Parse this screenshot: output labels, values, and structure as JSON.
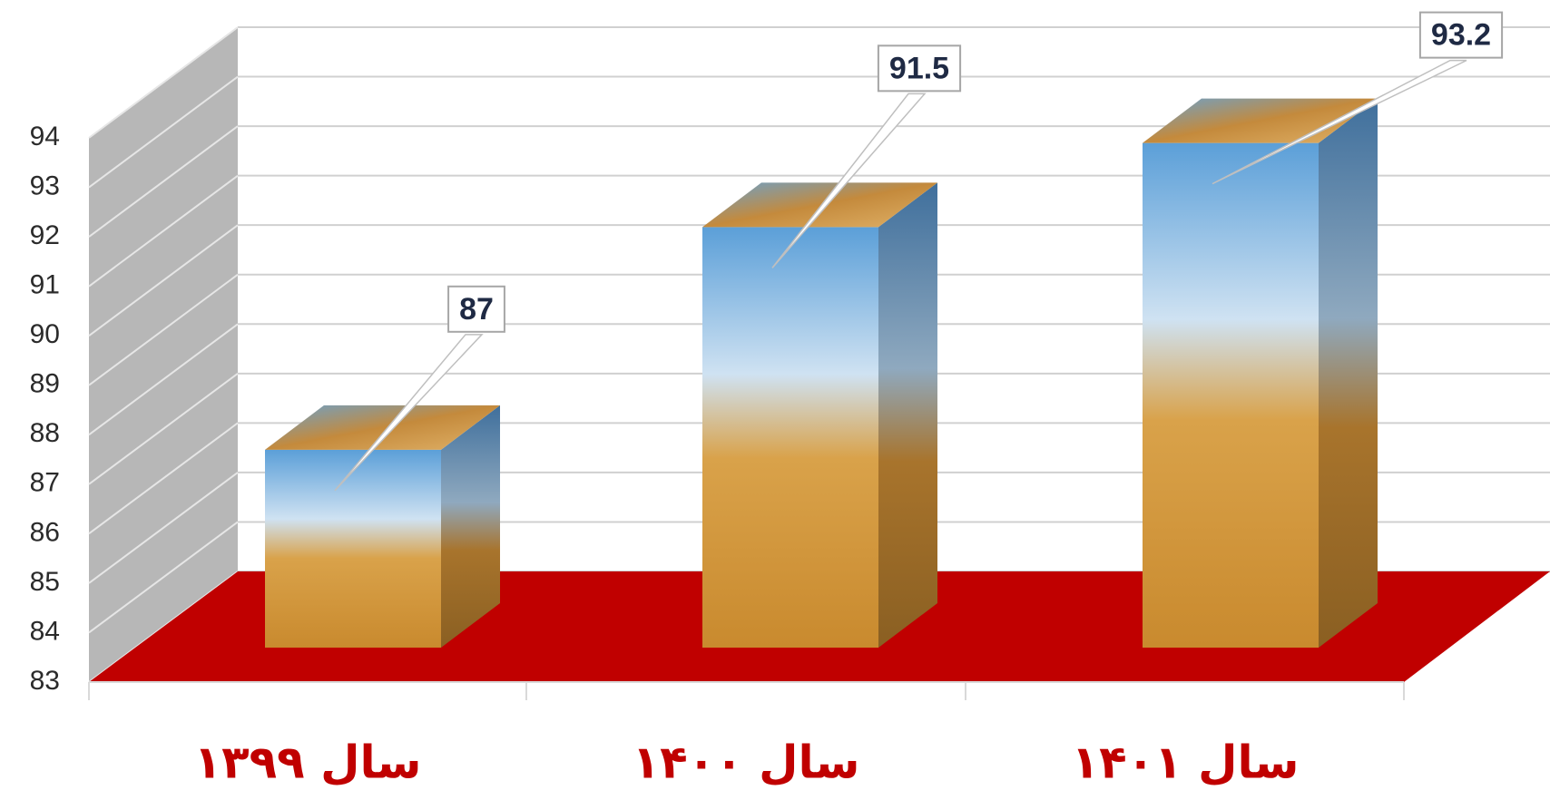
{
  "chart_data": {
    "type": "bar3d",
    "categories": [
      "سال ۱۳۹۹",
      "سال ۱۴۰۰",
      "سال ۱۴۰۱"
    ],
    "values": [
      87,
      91.5,
      93.2
    ],
    "ylim": [
      83,
      94
    ],
    "yticks": [
      83,
      84,
      85,
      86,
      87,
      88,
      89,
      90,
      91,
      92,
      93,
      94
    ],
    "grid": true
  }
}
